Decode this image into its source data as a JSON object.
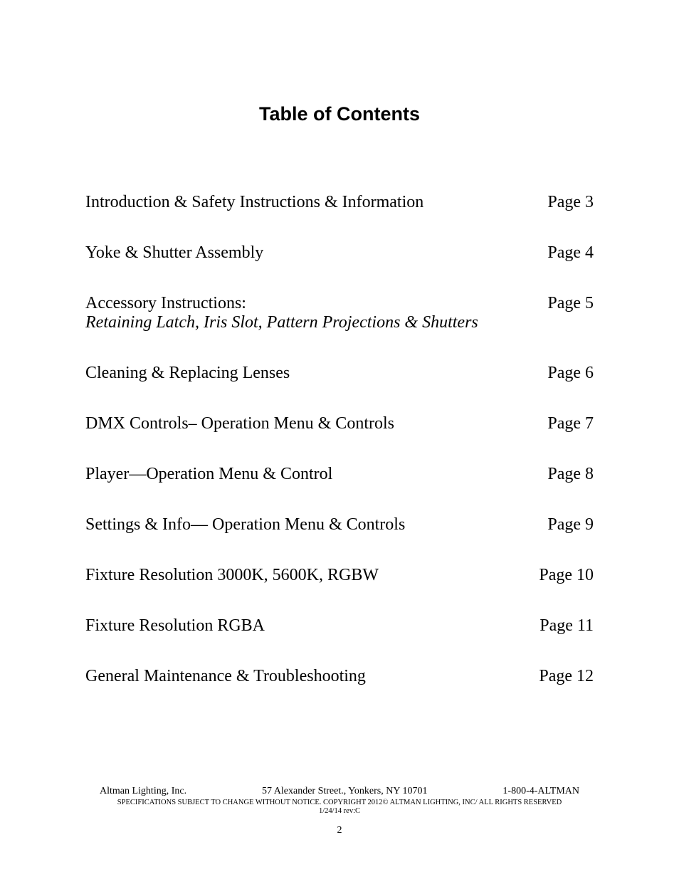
{
  "title": "Table of Contents",
  "toc": [
    {
      "label": "Introduction & Safety Instructions & Information",
      "page": "Page 3"
    },
    {
      "label": "Yoke & Shutter Assembly",
      "page": "Page 4"
    },
    {
      "label": "Accessory Instructions:",
      "subtitle": "Retaining Latch, Iris Slot, Pattern Projections & Shutters",
      "page": "Page 5"
    },
    {
      "label": "Cleaning & Replacing Lenses",
      "page": "Page 6"
    },
    {
      "label": "DMX Controls– Operation Menu & Controls",
      "page": "Page 7"
    },
    {
      "label": "Player—Operation Menu & Control",
      "page": "Page 8"
    },
    {
      "label": "Settings & Info— Operation Menu & Controls",
      "page": "Page 9"
    },
    {
      "label": "Fixture Resolution 3000K, 5600K, RGBW",
      "page": "Page 10"
    },
    {
      "label": "Fixture Resolution RGBA",
      "page": "Page 11"
    },
    {
      "label": "General Maintenance & Troubleshooting",
      "page": "Page 12"
    }
  ],
  "footer": {
    "company": "Altman Lighting, Inc.",
    "address": "57 Alexander Street., Yonkers, NY 10701",
    "phone": "1-800-4-ALTMAN",
    "copyright": "SPECIFICATIONS SUBJECT TO CHANGE WITHOUT NOTICE.  COPYRIGHT 2012© ALTMAN LIGHTING, INC/ ALL RIGHTS RESERVED",
    "revision": "1/24/14 rev:C",
    "pagenum": "2"
  }
}
